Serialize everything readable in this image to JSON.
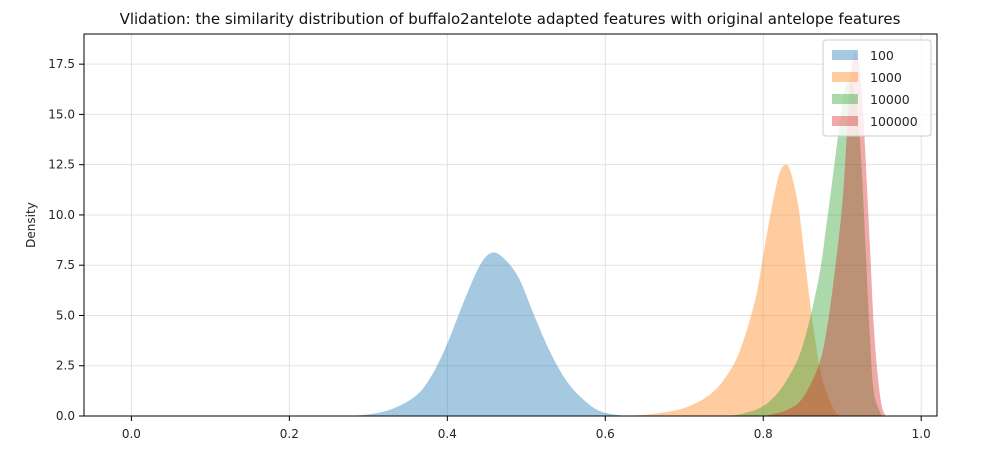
{
  "chart_data": {
    "type": "area",
    "title": "Vlidation: the similarity distribution of buffalo2antelote adapted features with original antelope features",
    "xlabel": "",
    "ylabel": "Density",
    "xlim": [
      -0.06,
      1.02
    ],
    "ylim": [
      0,
      19
    ],
    "grid": true,
    "legend_position": "top-right",
    "x_ticks": [
      "0.0",
      "0.2",
      "0.4",
      "0.6",
      "0.8",
      "1.0"
    ],
    "x_tick_values": [
      0.0,
      0.2,
      0.4,
      0.6,
      0.8,
      1.0
    ],
    "y_ticks": [
      "0.0",
      "2.5",
      "5.0",
      "7.5",
      "10.0",
      "12.5",
      "15.0",
      "17.5"
    ],
    "y_tick_values": [
      0.0,
      2.5,
      5.0,
      7.5,
      10.0,
      12.5,
      15.0,
      17.5
    ],
    "series": [
      {
        "name": "100",
        "color": "#1f77b4",
        "x": [
          0.27,
          0.3,
          0.33,
          0.36,
          0.38,
          0.4,
          0.42,
          0.44,
          0.455,
          0.47,
          0.49,
          0.51,
          0.53,
          0.55,
          0.57,
          0.59,
          0.61,
          0.63
        ],
        "y": [
          0.0,
          0.08,
          0.35,
          1.0,
          2.0,
          3.6,
          5.6,
          7.4,
          8.1,
          7.9,
          6.9,
          5.0,
          3.2,
          1.8,
          0.9,
          0.3,
          0.08,
          0.0
        ]
      },
      {
        "name": "1000",
        "color": "#ff7f0e",
        "x": [
          0.62,
          0.66,
          0.7,
          0.73,
          0.75,
          0.77,
          0.79,
          0.8,
          0.81,
          0.82,
          0.828,
          0.835,
          0.845,
          0.855,
          0.865,
          0.875,
          0.89,
          0.9
        ],
        "y": [
          0.0,
          0.1,
          0.4,
          1.0,
          1.8,
          3.2,
          5.8,
          8.0,
          10.2,
          12.0,
          12.5,
          12.1,
          10.3,
          7.0,
          4.0,
          1.8,
          0.3,
          0.0
        ]
      },
      {
        "name": "10000",
        "color": "#2ca02c",
        "x": [
          0.76,
          0.79,
          0.81,
          0.83,
          0.85,
          0.87,
          0.88,
          0.89,
          0.9,
          0.905,
          0.91,
          0.915,
          0.92,
          0.925,
          0.93,
          0.935,
          0.94,
          0.95
        ],
        "y": [
          0.0,
          0.3,
          0.8,
          1.8,
          3.5,
          6.8,
          9.5,
          12.5,
          15.5,
          16.5,
          16.6,
          16.2,
          15.0,
          12.0,
          8.0,
          4.0,
          1.2,
          0.0
        ]
      },
      {
        "name": "100000",
        "color": "#d62728",
        "x": [
          0.8,
          0.83,
          0.85,
          0.87,
          0.88,
          0.89,
          0.9,
          0.905,
          0.91,
          0.915,
          0.92,
          0.925,
          0.93,
          0.935,
          0.94,
          0.945,
          0.95,
          0.955
        ],
        "y": [
          0.0,
          0.3,
          0.9,
          2.5,
          4.2,
          7.0,
          10.5,
          13.5,
          16.5,
          18.0,
          17.7,
          16.0,
          12.5,
          8.5,
          4.5,
          2.0,
          0.5,
          0.0
        ]
      }
    ]
  }
}
